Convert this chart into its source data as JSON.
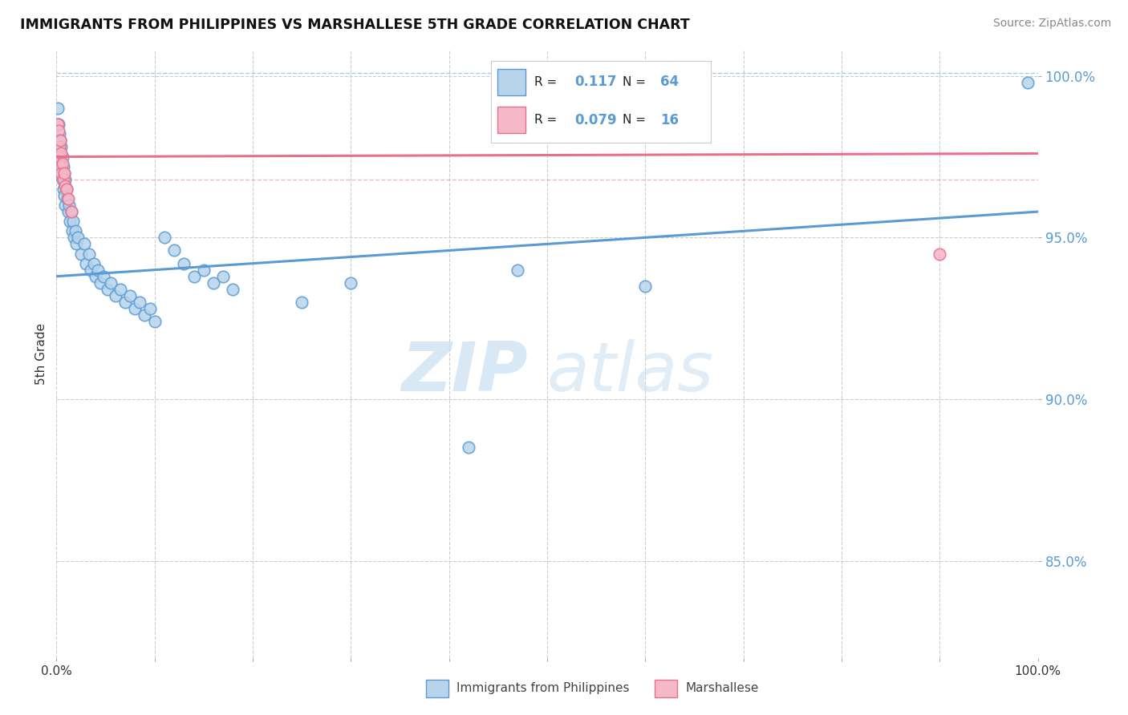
{
  "title": "IMMIGRANTS FROM PHILIPPINES VS MARSHALLESE 5TH GRADE CORRELATION CHART",
  "source": "Source: ZipAtlas.com",
  "ylabel": "5th Grade",
  "xlim": [
    0.0,
    1.0
  ],
  "ylim": [
    0.82,
    1.008
  ],
  "yticks": [
    0.85,
    0.9,
    0.95,
    1.0
  ],
  "ytick_labels": [
    "85.0%",
    "90.0%",
    "95.0%",
    "100.0%"
  ],
  "xtick_positions": [
    0.0,
    0.1,
    0.2,
    0.3,
    0.4,
    0.5,
    0.6,
    0.7,
    0.8,
    0.9,
    1.0
  ],
  "xtick_labels_show": [
    "0.0%",
    "",
    "",
    "",
    "",
    "",
    "",
    "",
    "",
    "",
    "100.0%"
  ],
  "legend_R_blue": "0.117",
  "legend_N_blue": "64",
  "legend_R_pink": "0.079",
  "legend_N_pink": "16",
  "blue_fill": "#b8d4ea",
  "pink_fill": "#f5b8c8",
  "blue_edge": "#5b9bd5",
  "pink_edge": "#e8708a",
  "blue_line": "#5b9bd5",
  "pink_line": "#e8708a",
  "blue_scatter": [
    [
      0.001,
      0.99
    ],
    [
      0.002,
      0.985
    ],
    [
      0.002,
      0.978
    ],
    [
      0.003,
      0.982
    ],
    [
      0.003,
      0.975
    ],
    [
      0.004,
      0.98
    ],
    [
      0.004,
      0.972
    ],
    [
      0.005,
      0.978
    ],
    [
      0.005,
      0.97
    ],
    [
      0.006,
      0.975
    ],
    [
      0.006,
      0.968
    ],
    [
      0.007,
      0.972
    ],
    [
      0.007,
      0.965
    ],
    [
      0.008,
      0.97
    ],
    [
      0.008,
      0.963
    ],
    [
      0.009,
      0.968
    ],
    [
      0.009,
      0.96
    ],
    [
      0.01,
      0.965
    ],
    [
      0.011,
      0.962
    ],
    [
      0.012,
      0.958
    ],
    [
      0.013,
      0.96
    ],
    [
      0.014,
      0.955
    ],
    [
      0.015,
      0.958
    ],
    [
      0.016,
      0.952
    ],
    [
      0.017,
      0.955
    ],
    [
      0.018,
      0.95
    ],
    [
      0.019,
      0.952
    ],
    [
      0.02,
      0.948
    ],
    [
      0.022,
      0.95
    ],
    [
      0.025,
      0.945
    ],
    [
      0.028,
      0.948
    ],
    [
      0.03,
      0.942
    ],
    [
      0.033,
      0.945
    ],
    [
      0.035,
      0.94
    ],
    [
      0.038,
      0.942
    ],
    [
      0.04,
      0.938
    ],
    [
      0.042,
      0.94
    ],
    [
      0.045,
      0.936
    ],
    [
      0.048,
      0.938
    ],
    [
      0.052,
      0.934
    ],
    [
      0.055,
      0.936
    ],
    [
      0.06,
      0.932
    ],
    [
      0.065,
      0.934
    ],
    [
      0.07,
      0.93
    ],
    [
      0.075,
      0.932
    ],
    [
      0.08,
      0.928
    ],
    [
      0.085,
      0.93
    ],
    [
      0.09,
      0.926
    ],
    [
      0.095,
      0.928
    ],
    [
      0.1,
      0.924
    ],
    [
      0.11,
      0.95
    ],
    [
      0.12,
      0.946
    ],
    [
      0.13,
      0.942
    ],
    [
      0.14,
      0.938
    ],
    [
      0.15,
      0.94
    ],
    [
      0.16,
      0.936
    ],
    [
      0.17,
      0.938
    ],
    [
      0.18,
      0.934
    ],
    [
      0.25,
      0.93
    ],
    [
      0.3,
      0.936
    ],
    [
      0.42,
      0.885
    ],
    [
      0.47,
      0.94
    ],
    [
      0.6,
      0.935
    ],
    [
      0.99,
      0.998
    ]
  ],
  "pink_scatter": [
    [
      0.001,
      0.985
    ],
    [
      0.002,
      0.983
    ],
    [
      0.003,
      0.978
    ],
    [
      0.003,
      0.975
    ],
    [
      0.004,
      0.98
    ],
    [
      0.004,
      0.972
    ],
    [
      0.005,
      0.976
    ],
    [
      0.005,
      0.97
    ],
    [
      0.006,
      0.973
    ],
    [
      0.007,
      0.968
    ],
    [
      0.008,
      0.97
    ],
    [
      0.009,
      0.966
    ],
    [
      0.01,
      0.965
    ],
    [
      0.012,
      0.962
    ],
    [
      0.015,
      0.958
    ],
    [
      0.9,
      0.945
    ]
  ],
  "blue_trend": [
    0.0,
    0.938,
    1.0,
    0.958
  ],
  "pink_trend": [
    0.0,
    0.975,
    1.0,
    0.976
  ],
  "blue_hline_y": 1.001,
  "pink_hline_y": 0.968,
  "watermark_zip": "ZIP",
  "watermark_atlas": "atlas",
  "bg_color": "#ffffff",
  "grid_color": "#cccccc",
  "tick_color": "#5b9bd5"
}
